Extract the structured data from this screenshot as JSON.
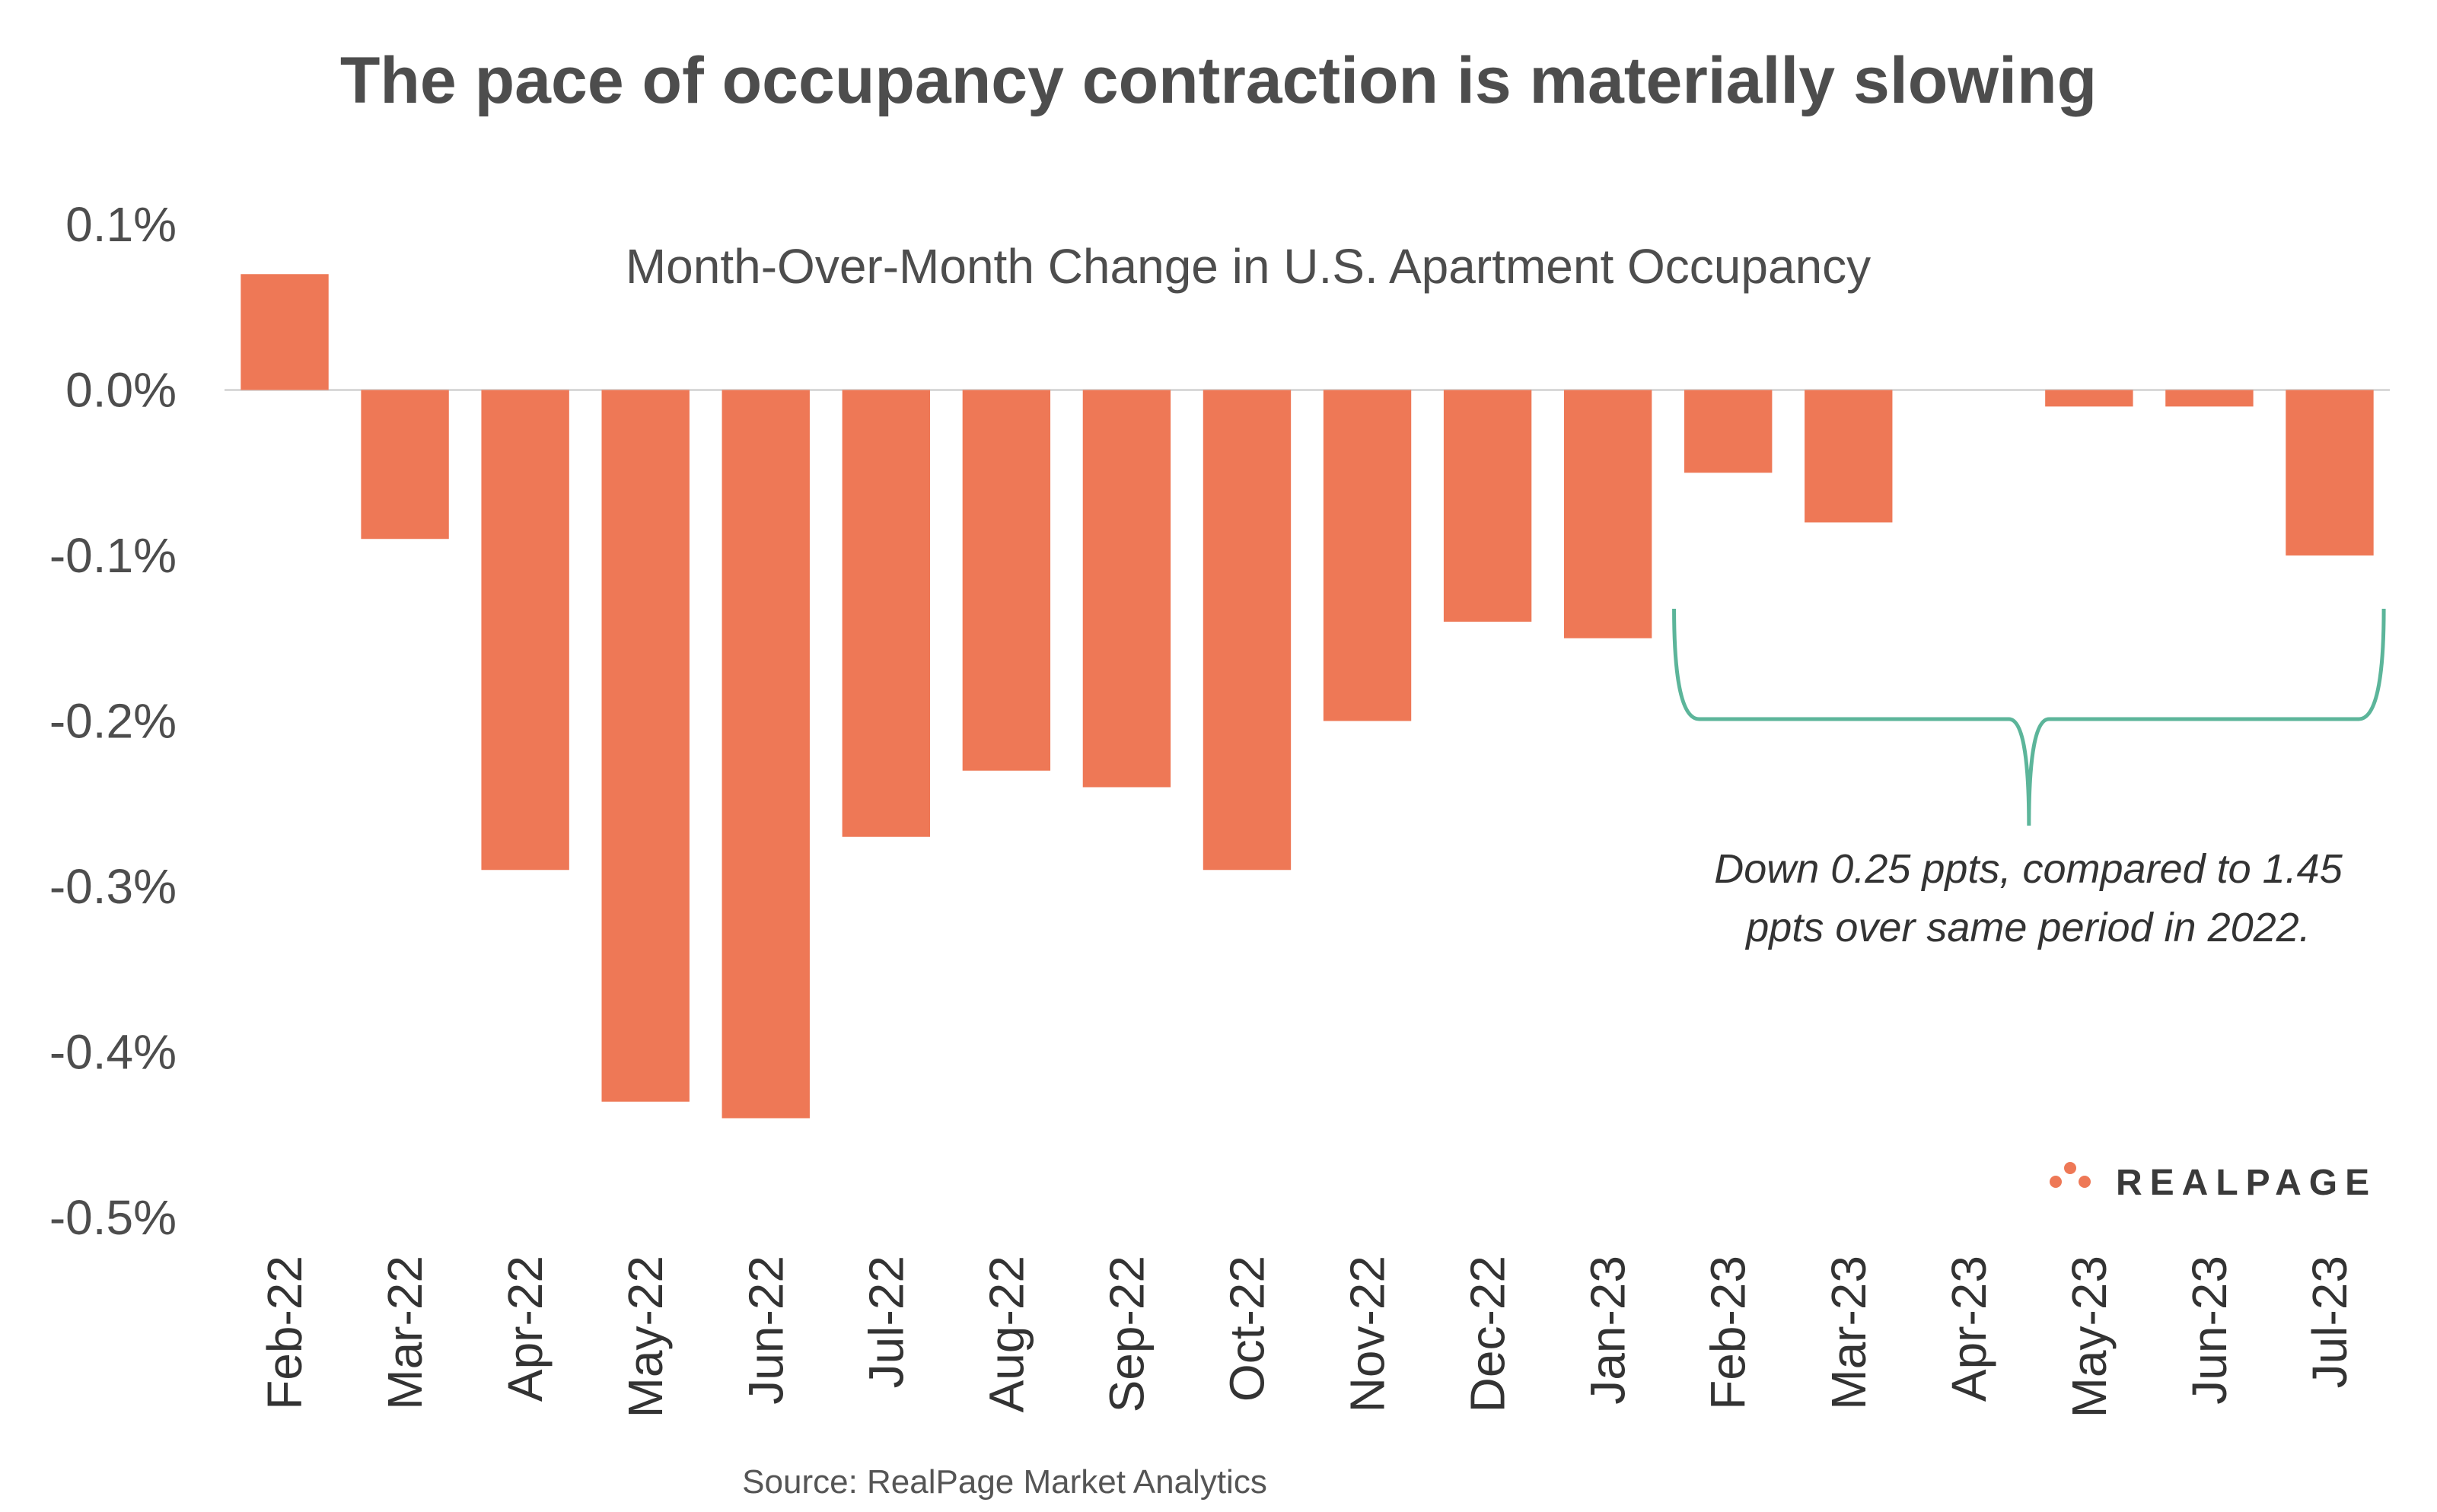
{
  "chart_data": {
    "type": "bar",
    "title": "The pace of occupancy contraction is materially slowing",
    "subtitle": "Month-Over-Month Change in U.S. Apartment Occupancy",
    "xlabel": "",
    "ylabel": "",
    "categories": [
      "Feb-22",
      "Mar-22",
      "Apr-22",
      "May-22",
      "Jun-22",
      "Jul-22",
      "Aug-22",
      "Sep-22",
      "Oct-22",
      "Nov-22",
      "Dec-22",
      "Jan-23",
      "Feb-23",
      "Mar-23",
      "Apr-23",
      "May-23",
      "Jun-23",
      "Jul-23"
    ],
    "values": [
      0.07,
      -0.09,
      -0.29,
      -0.43,
      -0.44,
      -0.27,
      -0.23,
      -0.24,
      -0.29,
      -0.2,
      -0.14,
      -0.15,
      -0.05,
      -0.08,
      0.0,
      -0.01,
      -0.01,
      -0.1
    ],
    "ylim": [
      -0.5,
      0.1
    ],
    "yticks": [
      0.1,
      0.0,
      -0.1,
      -0.2,
      -0.3,
      -0.4,
      -0.5
    ],
    "ytick_labels": [
      "0.1%",
      "0.0%",
      "-0.1%",
      "-0.2%",
      "-0.3%",
      "-0.4%",
      "-0.5%"
    ],
    "bar_color": "#ee7856",
    "grid": false,
    "legend": "none",
    "annotation": {
      "line1": "Down 0.25 ppts, compared to 1.45",
      "line2": "ppts over same period in 2022.",
      "span_start": "Feb-23",
      "span_end": "Jul-23",
      "brace_color": "#5cb59a"
    },
    "source": "Source: RealPage Market Analytics"
  },
  "logo": {
    "text": "REALPAGE",
    "dot_color": "#ee7856"
  }
}
